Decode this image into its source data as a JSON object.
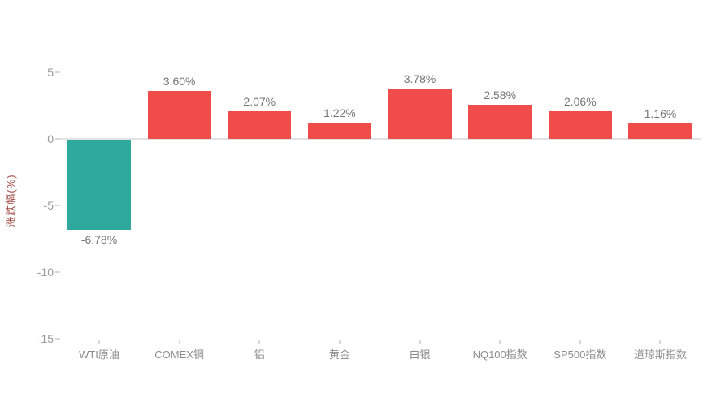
{
  "chart_data": {
    "type": "bar",
    "title": "",
    "xlabel": "",
    "ylabel": "涨跌幅(%)",
    "categories": [
      "WTI原油",
      "COMEX铜",
      "铝",
      "黄金",
      "白银",
      "NQ100指数",
      "SP500指数",
      "道琼斯指数"
    ],
    "values": [
      -6.78,
      3.6,
      2.07,
      1.22,
      3.78,
      2.58,
      2.06,
      1.16
    ],
    "value_labels": [
      "-6.78%",
      "3.60%",
      "2.07%",
      "1.22%",
      "3.78%",
      "2.58%",
      "2.06%",
      "1.16%"
    ],
    "yticks": [
      5,
      0,
      -5,
      -10,
      -15
    ],
    "ytick_labels": [
      "5",
      "0",
      "-5",
      "-10",
      "-15"
    ],
    "ylim": [
      -15,
      5
    ],
    "grid": "zero-line-only",
    "legend": "none",
    "colors": {
      "positive_bar": "#F04C4C",
      "negative_bar": "#2FA89D",
      "value_label_text": "#757575",
      "axis_tick_text": "#999999",
      "x_label_text": "#8C8C8C",
      "axis_title_text": "#A04B44",
      "zero_line": "#E2E2E2",
      "tick_mark": "#D8D8D8",
      "background": "#FFFFFF"
    }
  }
}
